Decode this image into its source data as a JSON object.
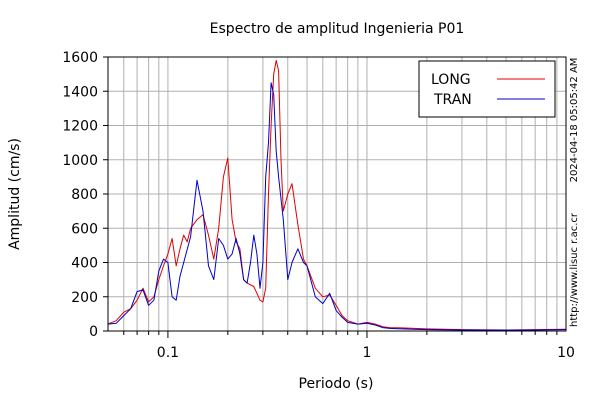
{
  "chart_data": {
    "type": "line",
    "title": "Espectro de amplitud Ingenieria P01",
    "xlabel": "Periodo (s)",
    "ylabel": "Amplitud (cm/s)",
    "xscale": "log",
    "xlim": [
      0.05,
      10
    ],
    "ylim": [
      0,
      1600
    ],
    "yticks": [
      0,
      200,
      400,
      600,
      800,
      1000,
      1200,
      1400,
      1600
    ],
    "xticks": [
      0.1,
      1,
      10
    ],
    "xtick_labels": [
      "0.1",
      "1",
      "10"
    ],
    "grid": true,
    "legend_position": "top-right",
    "series": [
      {
        "name": "LONG",
        "color": "#e00000",
        "x": [
          0.05,
          0.055,
          0.06,
          0.065,
          0.07,
          0.075,
          0.08,
          0.085,
          0.09,
          0.095,
          0.1,
          0.105,
          0.11,
          0.115,
          0.12,
          0.125,
          0.13,
          0.14,
          0.15,
          0.16,
          0.17,
          0.18,
          0.19,
          0.2,
          0.21,
          0.22,
          0.23,
          0.24,
          0.25,
          0.27,
          0.29,
          0.3,
          0.31,
          0.32,
          0.33,
          0.34,
          0.35,
          0.36,
          0.37,
          0.38,
          0.4,
          0.42,
          0.45,
          0.48,
          0.5,
          0.55,
          0.6,
          0.65,
          0.7,
          0.75,
          0.8,
          0.9,
          1.0,
          1.1,
          1.2,
          1.3,
          1.5,
          2,
          3,
          5,
          7,
          10
        ],
        "y": [
          40,
          60,
          110,
          130,
          180,
          250,
          170,
          200,
          300,
          380,
          450,
          540,
          380,
          480,
          560,
          520,
          600,
          650,
          680,
          560,
          420,
          600,
          900,
          1010,
          650,
          520,
          480,
          300,
          280,
          260,
          180,
          170,
          250,
          800,
          1200,
          1500,
          1580,
          1520,
          1000,
          700,
          800,
          860,
          620,
          420,
          380,
          250,
          200,
          210,
          150,
          90,
          60,
          40,
          50,
          40,
          25,
          20,
          18,
          12,
          8,
          6,
          8,
          10
        ]
      },
      {
        "name": "TRAN",
        "color": "#0000c8",
        "x": [
          0.05,
          0.055,
          0.06,
          0.065,
          0.07,
          0.075,
          0.08,
          0.085,
          0.09,
          0.095,
          0.1,
          0.105,
          0.11,
          0.115,
          0.12,
          0.13,
          0.14,
          0.15,
          0.16,
          0.17,
          0.18,
          0.19,
          0.2,
          0.21,
          0.22,
          0.23,
          0.24,
          0.25,
          0.26,
          0.27,
          0.28,
          0.29,
          0.3,
          0.31,
          0.32,
          0.33,
          0.34,
          0.35,
          0.36,
          0.38,
          0.4,
          0.42,
          0.45,
          0.48,
          0.5,
          0.55,
          0.6,
          0.65,
          0.7,
          0.75,
          0.8,
          0.9,
          1.0,
          1.1,
          1.2,
          1.3,
          1.5,
          2,
          3,
          5,
          7,
          10
        ],
        "y": [
          40,
          45,
          90,
          130,
          230,
          240,
          150,
          180,
          350,
          420,
          400,
          200,
          180,
          320,
          400,
          550,
          880,
          700,
          380,
          300,
          540,
          500,
          420,
          450,
          540,
          450,
          300,
          280,
          400,
          560,
          450,
          250,
          400,
          900,
          1100,
          1450,
          1380,
          1050,
          900,
          650,
          300,
          400,
          480,
          400,
          380,
          200,
          160,
          220,
          120,
          80,
          50,
          40,
          45,
          35,
          20,
          15,
          12,
          8,
          6,
          5,
          6,
          8
        ]
      }
    ]
  },
  "side_text": {
    "timestamp": "2024-04-18 05:05:42 AM",
    "url": "http://www.lisuc r.ac.cr"
  }
}
